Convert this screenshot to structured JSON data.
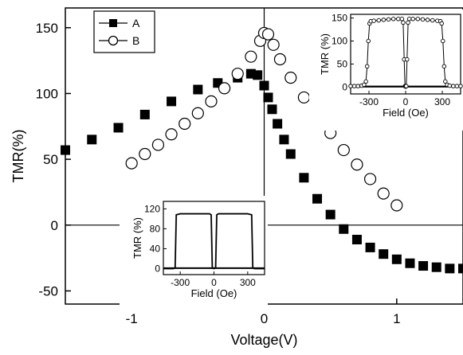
{
  "chart_data": [
    {
      "type": "scatter",
      "title": "",
      "xlabel": "Voltage(V)",
      "ylabel": "TMR(%)",
      "xlim": [
        -1.5,
        1.5
      ],
      "ylim": [
        -60,
        165
      ],
      "xticks": [
        -1,
        0,
        1
      ],
      "xtick_labels": [
        "-1",
        "0",
        "1"
      ],
      "yticks": [
        -50,
        0,
        50,
        100,
        150
      ],
      "ytick_labels": [
        "-50",
        "0",
        "50",
        "100",
        "150"
      ],
      "grid": false,
      "legend": "top-left",
      "series": [
        {
          "name": "A",
          "marker": "filled-square",
          "points": [
            [
              -1.5,
              57
            ],
            [
              -1.3,
              65
            ],
            [
              -1.1,
              74
            ],
            [
              -0.9,
              84
            ],
            [
              -0.7,
              94
            ],
            [
              -0.5,
              103
            ],
            [
              -0.35,
              108
            ],
            [
              -0.2,
              112
            ],
            [
              -0.1,
              115
            ],
            [
              -0.05,
              114
            ],
            [
              0.0,
              106
            ],
            [
              0.03,
              97
            ],
            [
              0.06,
              88
            ],
            [
              0.1,
              77
            ],
            [
              0.15,
              65
            ],
            [
              0.2,
              54
            ],
            [
              0.3,
              36
            ],
            [
              0.4,
              20
            ],
            [
              0.5,
              8
            ],
            [
              0.6,
              -3
            ],
            [
              0.7,
              -11
            ],
            [
              0.8,
              -17
            ],
            [
              0.9,
              -22
            ],
            [
              1.0,
              -26
            ],
            [
              1.1,
              -29
            ],
            [
              1.2,
              -31
            ],
            [
              1.3,
              -32
            ],
            [
              1.4,
              -33
            ],
            [
              1.5,
              -33
            ]
          ]
        },
        {
          "name": "B",
          "marker": "open-circle",
          "points": [
            [
              -1.0,
              47
            ],
            [
              -0.9,
              54
            ],
            [
              -0.8,
              61
            ],
            [
              -0.7,
              69
            ],
            [
              -0.6,
              77
            ],
            [
              -0.5,
              85
            ],
            [
              -0.4,
              94
            ],
            [
              -0.3,
              104
            ],
            [
              -0.2,
              115
            ],
            [
              -0.1,
              128
            ],
            [
              -0.03,
              140
            ],
            [
              0.0,
              146
            ],
            [
              0.03,
              145
            ],
            [
              0.07,
              137
            ],
            [
              0.12,
              126
            ],
            [
              0.2,
              112
            ],
            [
              0.3,
              97
            ],
            [
              0.4,
              83
            ],
            [
              0.5,
              70
            ],
            [
              0.6,
              57
            ],
            [
              0.7,
              46
            ],
            [
              0.8,
              35
            ],
            [
              0.9,
              24
            ],
            [
              1.0,
              15
            ]
          ]
        }
      ]
    },
    {
      "type": "line",
      "title": "",
      "position": "top-right inset",
      "xlabel": "Field (Oe)",
      "ylabel": "TMR (%)",
      "xlim": [
        -450,
        450
      ],
      "ylim": [
        -15,
        158
      ],
      "xticks": [
        -300,
        0,
        300
      ],
      "xtick_labels": [
        "-300",
        "0",
        "300"
      ],
      "yticks": [
        0,
        50,
        100,
        150
      ],
      "ytick_labels": [
        "0",
        "50",
        "100",
        "150"
      ],
      "series": [
        {
          "name": "",
          "marker": "open-circle",
          "points": [
            [
              -450,
              2
            ],
            [
              -420,
              2
            ],
            [
              -390,
              2
            ],
            [
              -360,
              3
            ],
            [
              -340,
              5
            ],
            [
              -325,
              12
            ],
            [
              -315,
              45
            ],
            [
              -305,
              100
            ],
            [
              -295,
              138
            ],
            [
              -285,
              143
            ],
            [
              -260,
              144
            ],
            [
              -220,
              145
            ],
            [
              -180,
              146
            ],
            [
              -140,
              147
            ],
            [
              -100,
              148
            ],
            [
              -60,
              148
            ],
            [
              -30,
              148
            ],
            [
              -20,
              140
            ],
            [
              -12,
              60
            ],
            [
              -5,
              2
            ],
            [
              0,
              1
            ],
            [
              5,
              2
            ],
            [
              12,
              60
            ],
            [
              20,
              140
            ],
            [
              30,
              148
            ],
            [
              60,
              148
            ],
            [
              100,
              148
            ],
            [
              140,
              147
            ],
            [
              180,
              146
            ],
            [
              220,
              145
            ],
            [
              260,
              144
            ],
            [
              285,
              143
            ],
            [
              295,
              138
            ],
            [
              305,
              100
            ],
            [
              315,
              45
            ],
            [
              325,
              12
            ],
            [
              340,
              5
            ],
            [
              360,
              3
            ],
            [
              390,
              2
            ],
            [
              420,
              2
            ],
            [
              450,
              2
            ]
          ]
        }
      ]
    },
    {
      "type": "line",
      "title": "",
      "position": "bottom-center inset",
      "xlabel": "Field (Oe)",
      "ylabel": "TMR (%)",
      "xlim": [
        -450,
        450
      ],
      "ylim": [
        -12,
        135
      ],
      "xticks": [
        -300,
        0,
        300
      ],
      "xtick_labels": [
        "-300",
        "0",
        "300"
      ],
      "yticks": [
        0,
        40,
        80,
        120
      ],
      "ytick_labels": [
        "0",
        "40",
        "80",
        "120"
      ],
      "series": [
        {
          "name": "",
          "marker": "line",
          "points": [
            [
              -450,
              0
            ],
            [
              -360,
              0
            ],
            [
              -345,
              2
            ],
            [
              -335,
              108
            ],
            [
              -300,
              110
            ],
            [
              -200,
              110
            ],
            [
              -100,
              110
            ],
            [
              -40,
              110
            ],
            [
              -25,
              108
            ],
            [
              -15,
              2
            ],
            [
              0,
              0
            ],
            [
              15,
              2
            ],
            [
              25,
              108
            ],
            [
              40,
              110
            ],
            [
              100,
              110
            ],
            [
              200,
              110
            ],
            [
              300,
              110
            ],
            [
              335,
              108
            ],
            [
              345,
              2
            ],
            [
              360,
              0
            ],
            [
              450,
              0
            ]
          ]
        }
      ]
    }
  ]
}
